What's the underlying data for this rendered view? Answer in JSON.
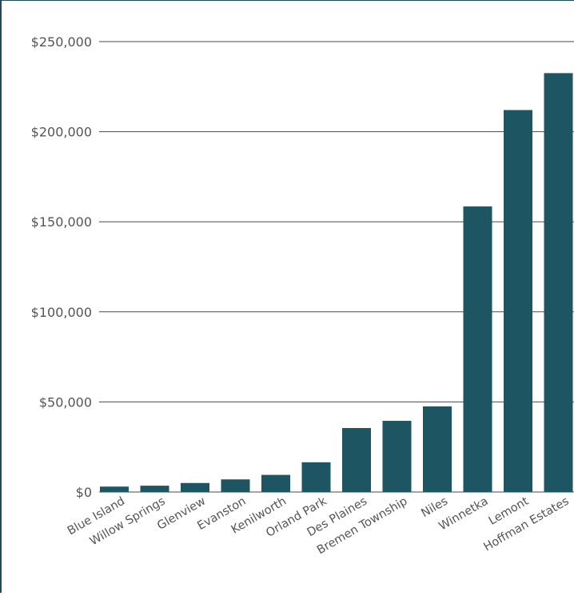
{
  "chart_data": {
    "type": "bar",
    "title": "",
    "xlabel": "",
    "ylabel": "",
    "categories": [
      "Blue Island",
      "Willow Springs",
      "Glenview",
      "Evanston",
      "Kenilworth",
      "Orland Park",
      "Des Plaines",
      "Bremen Township",
      "Niles",
      "Winnetka",
      "Lemont",
      "Hoffman Estates"
    ],
    "values": [
      3000,
      3500,
      5000,
      7000,
      9500,
      16500,
      35500,
      39500,
      47500,
      158500,
      212000,
      232500
    ],
    "ylim": [
      0,
      250000
    ],
    "yticks": [
      0,
      50000,
      100000,
      150000,
      200000,
      250000
    ],
    "ytick_labels": [
      "$0",
      "$50,000",
      "$100,000",
      "$150,000",
      "$200,000",
      "$250,000"
    ],
    "grid": true,
    "bar_color": "#1d5563",
    "grid_color": "#4a4a4a"
  }
}
